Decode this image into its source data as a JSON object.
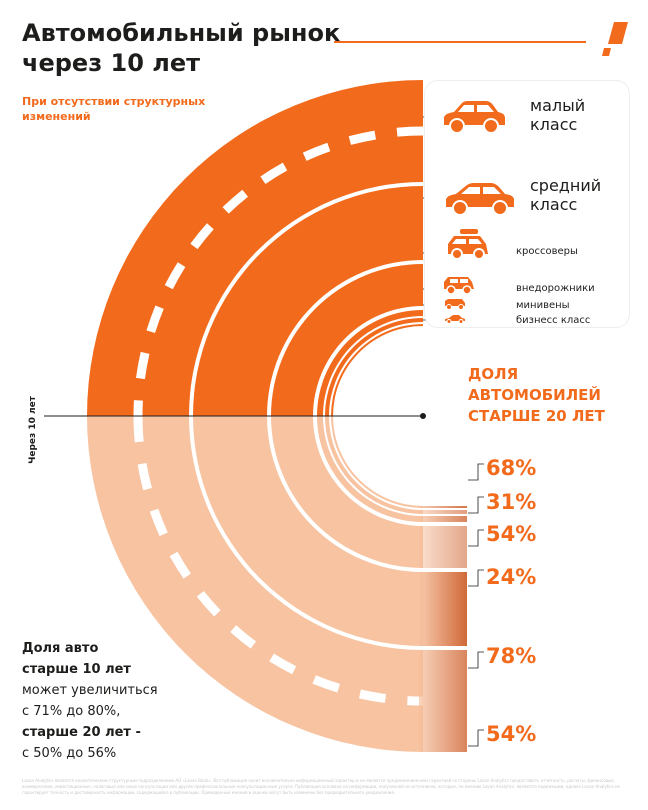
{
  "header": {
    "title": "Автомобильный рынок через  10 лет",
    "subtitle": "При отсутствии структурных изменений"
  },
  "colors": {
    "accent": "#f26a1b",
    "light": "#f7c3a1",
    "dark_text": "#1d1d1b",
    "gradient_dark": "#c9521a"
  },
  "icons": [
    "logo-icon",
    "sedan-icon",
    "sedan-icon",
    "suv-roof-box-icon",
    "offroad-icon",
    "minivan-icon",
    "business-car-icon"
  ],
  "legend": {
    "items": [
      {
        "label_line1": "малый",
        "label_line2": "класс"
      },
      {
        "label_line1": "средний",
        "label_line2": "класс"
      },
      {
        "label_line1": "кроссоверы",
        "label_line2": ""
      },
      {
        "label_line1": "внедорожники",
        "label_line2": ""
      },
      {
        "label_line1": "минивены",
        "label_line2": ""
      },
      {
        "label_line1": "бизнесс класс",
        "label_line2": ""
      }
    ]
  },
  "axis": {
    "label": "Через 10 лет"
  },
  "share_block": {
    "title": "ДОЛЯ АВТОМОБИЛЕЙ СТАРШЕ 20 ЛЕТ"
  },
  "note": {
    "line1": "Доля авто",
    "line2": "старше 10 лет",
    "line3": "может увеличиться",
    "line4": "с 71% до 80%,",
    "line5": "старше 20 лет -",
    "line6": "с 50% до 56%"
  },
  "disclaimer": "Lavan Analytics является аналитическим структурным подразделением АО «Lavan Bank». Вся публикация носит исключительно информационный характер и не является предложением или гарантией со стороны Lavan Analytics предоставить отчетность, расчеты, финансовые, коммерческие, инвестиционные, налоговые или иные консультации или другие профессиональные консультационные услуги. Публикация основана на информации, полученной из источников, которые, по мнению Lavan Analytics, являются надежными, однако Lavan Analytics не гарантирует точность и достоверность информации, содержащейся в публикации. Приведенные мнения и оценки могут быть изменены без предварительного уведомления.",
  "chart_data": {
    "type": "nested semicircles",
    "title": "Автомобильный рынок через  10 лет",
    "subtitle": "При отсутствии структурных изменений",
    "series_name": "ДОЛЯ АВТОМОБИЛЕЙ СТАРШЕ 20 ЛЕТ",
    "categories": [
      "малый класс",
      "средний класс",
      "кроссоверы",
      "внедорожники",
      "минивены",
      "бизнесс класс"
    ],
    "values_percent": [
      54,
      78,
      24,
      54,
      31,
      68
    ],
    "value_labels": [
      "54%",
      "78%",
      "24%",
      "54%",
      "31%",
      "68%"
    ],
    "top_half": "current structure",
    "bottom_half_label": "Через 10 лет"
  }
}
